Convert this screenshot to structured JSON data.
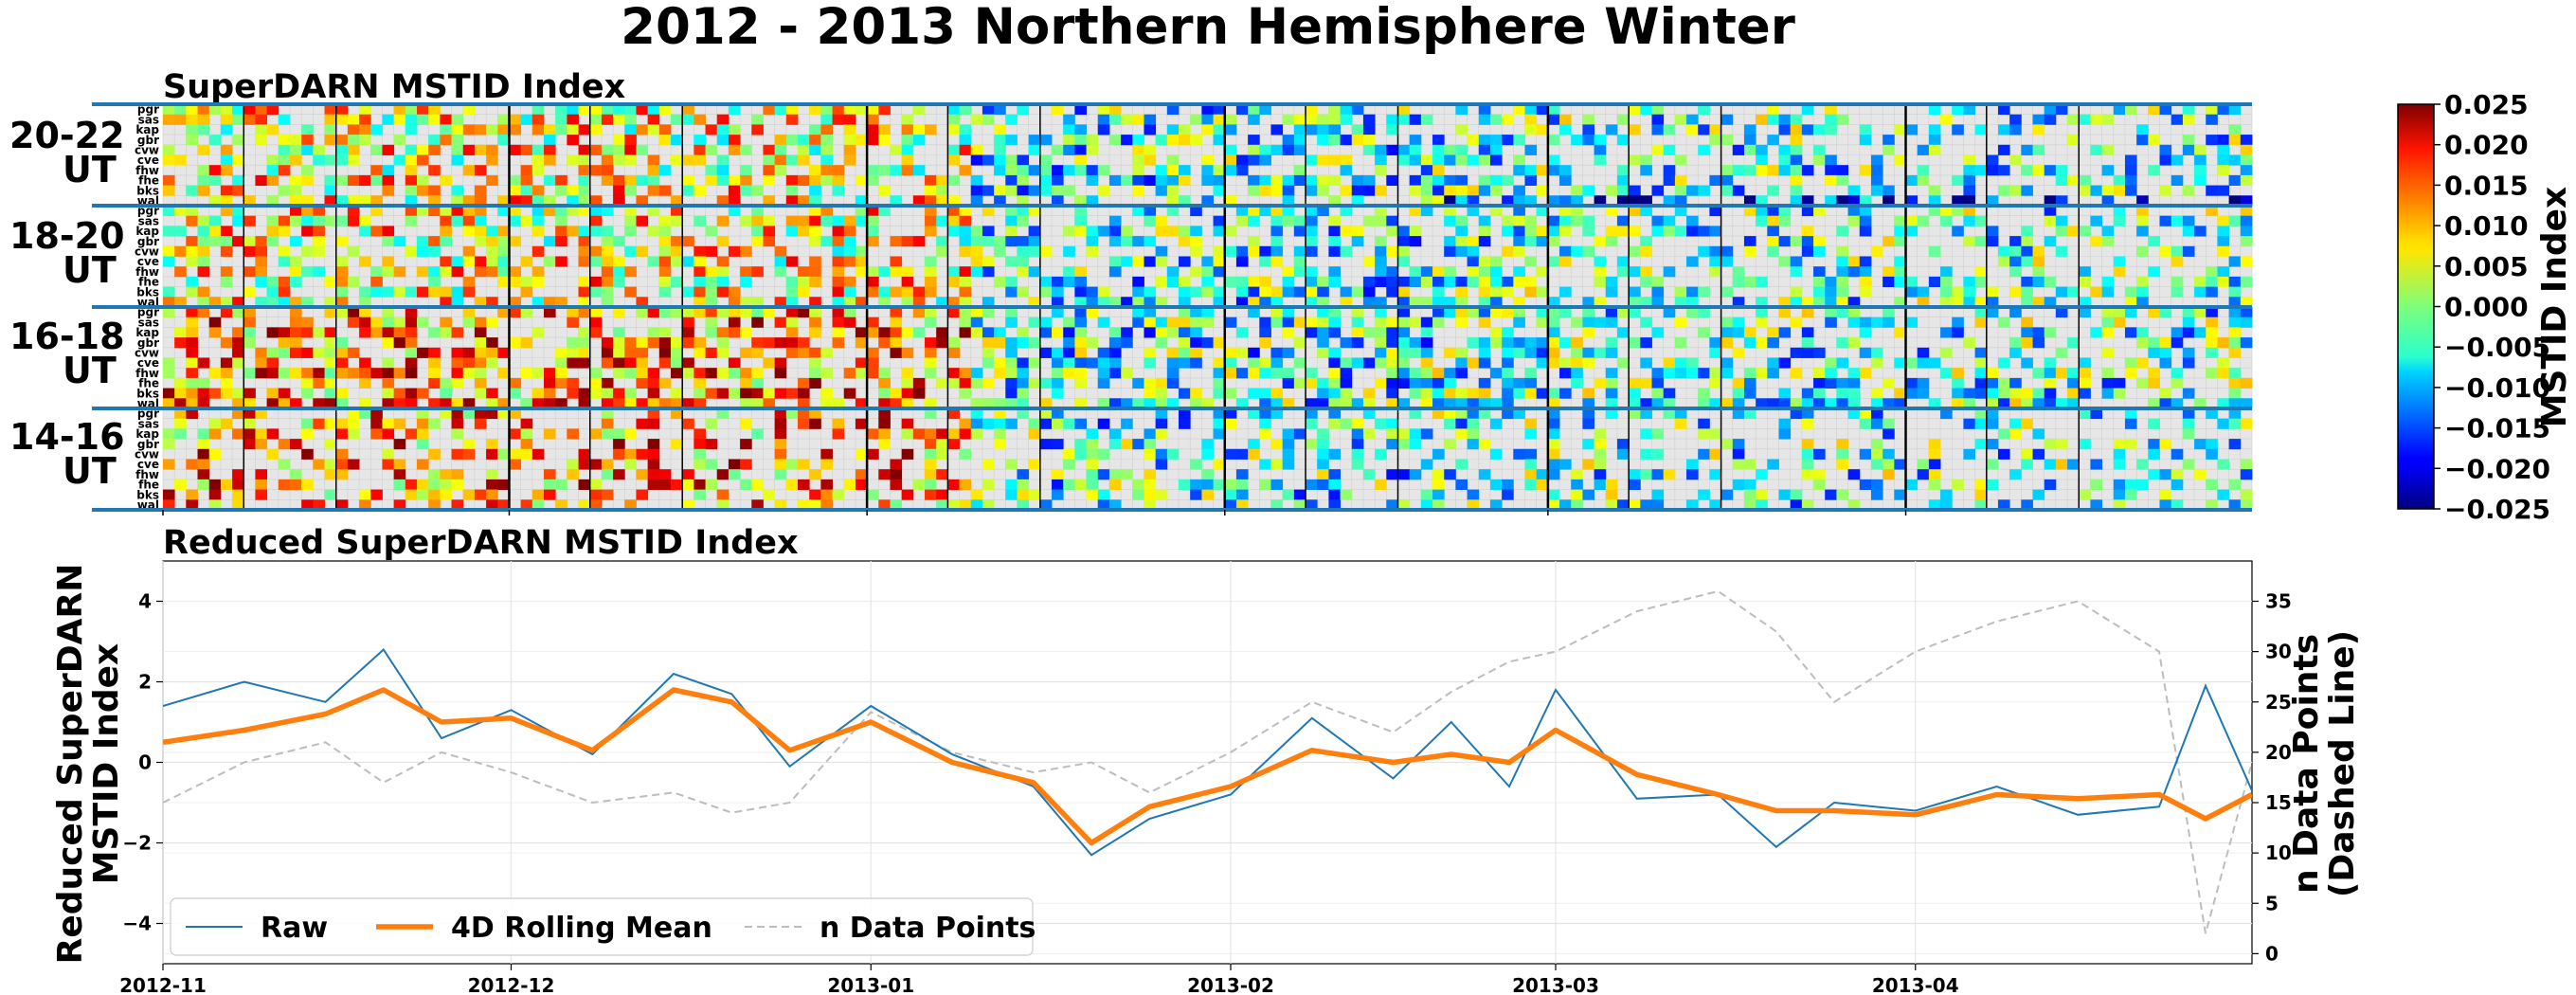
{
  "figure": {
    "title": "2012 - 2013 Northern Hemisphere Winter"
  },
  "heatmap": {
    "title": "SuperDARN MSTID Index",
    "radars": [
      "pgr",
      "sas",
      "kap",
      "gbr",
      "cvw",
      "cve",
      "fhw",
      "fhe",
      "bks",
      "wal"
    ],
    "rows": [
      {
        "label_top": "20-22",
        "label_bottom": "UT"
      },
      {
        "label_top": "18-20",
        "label_bottom": "UT"
      },
      {
        "label_top": "16-18",
        "label_bottom": "UT"
      },
      {
        "label_top": "14-16",
        "label_bottom": "UT"
      }
    ],
    "days": 181,
    "start_date": "2012-11-01",
    "colorbar": {
      "label": "MSTID Index",
      "ticks": [
        "0.025",
        "0.020",
        "0.015",
        "0.010",
        "0.005",
        "0.000",
        "−0.005",
        "−0.010",
        "−0.015",
        "−0.020",
        "−0.025"
      ],
      "range": [
        -0.025,
        0.025
      ],
      "colormap": "jet"
    },
    "missing_color": "#e6e6e6"
  },
  "lineplot": {
    "title": "Reduced SuperDARN MSTID Index",
    "ylabel_line1": "Reduced SuperDARN",
    "ylabel_line2": "MSTID Index",
    "y2label_line1": "n Data Points",
    "y2label_line2": "(Dashed Line)",
    "yticks": [
      "4",
      "2",
      "0",
      "−2",
      "−4"
    ],
    "y2ticks": [
      "35",
      "30",
      "25",
      "20",
      "15",
      "10",
      "5",
      "0"
    ],
    "xticks": [
      "2012-11",
      "2012-12",
      "2013-01",
      "2013-02",
      "2013-03",
      "2013-04"
    ],
    "legend": {
      "raw": "Raw",
      "rolling": "4D Rolling Mean",
      "ndata": "n Data Points"
    }
  },
  "chart_data": [
    {
      "type": "heatmap",
      "title": "SuperDARN MSTID Index",
      "x_range": [
        "2012-11-01",
        "2013-04-30"
      ],
      "y_groups": [
        "20-22 UT",
        "18-20 UT",
        "16-18 UT",
        "14-16 UT"
      ],
      "y_categories": [
        "pgr",
        "sas",
        "kap",
        "gbr",
        "cvw",
        "cve",
        "fhw",
        "fhe",
        "bks",
        "wal"
      ],
      "value_range": [
        -0.025,
        0.025
      ],
      "colorbar_label": "MSTID Index"
    },
    {
      "type": "line",
      "title": "Reduced SuperDARN MSTID Index",
      "x_range": [
        "2012-11-01",
        "2013-04-30"
      ],
      "ylim": [
        -5,
        5
      ],
      "y2lim": [
        -1,
        39
      ],
      "colors": {
        "raw": "#1f77b4",
        "rolling": "#ff7f0e",
        "ndata": "#bbbbbb"
      },
      "series": [
        {
          "name": "4D Rolling Mean",
          "x": [
            "2012-11-01",
            "2012-11-08",
            "2012-11-15",
            "2012-11-20",
            "2012-11-25",
            "2012-12-01",
            "2012-12-08",
            "2012-12-15",
            "2012-12-20",
            "2012-12-25",
            "2013-01-01",
            "2013-01-08",
            "2013-01-15",
            "2013-01-20",
            "2013-01-25",
            "2013-02-01",
            "2013-02-08",
            "2013-02-15",
            "2013-02-20",
            "2013-02-25",
            "2013-03-01",
            "2013-03-08",
            "2013-03-15",
            "2013-03-20",
            "2013-03-25",
            "2013-04-01",
            "2013-04-08",
            "2013-04-15",
            "2013-04-22",
            "2013-04-26",
            "2013-04-30"
          ],
          "y": [
            0.5,
            0.8,
            1.2,
            1.8,
            1.0,
            1.1,
            0.3,
            1.8,
            1.5,
            0.3,
            1.0,
            0.0,
            -0.5,
            -2.0,
            -1.1,
            -0.6,
            0.3,
            0.0,
            0.2,
            0.0,
            0.8,
            -0.3,
            -0.8,
            -1.2,
            -1.2,
            -1.3,
            -0.8,
            -0.9,
            -0.8,
            -1.4,
            -0.8
          ]
        },
        {
          "name": "Raw",
          "x": [
            "2012-11-01",
            "2012-11-08",
            "2012-11-15",
            "2012-11-20",
            "2012-11-25",
            "2012-12-01",
            "2012-12-08",
            "2012-12-15",
            "2012-12-20",
            "2012-12-25",
            "2013-01-01",
            "2013-01-08",
            "2013-01-15",
            "2013-01-20",
            "2013-01-25",
            "2013-02-01",
            "2013-02-08",
            "2013-02-15",
            "2013-02-20",
            "2013-02-25",
            "2013-03-01",
            "2013-03-08",
            "2013-03-15",
            "2013-03-20",
            "2013-03-25",
            "2013-04-01",
            "2013-04-08",
            "2013-04-15",
            "2013-04-22",
            "2013-04-26",
            "2013-04-30"
          ],
          "y": [
            1.4,
            2.0,
            1.5,
            2.8,
            0.6,
            1.3,
            0.2,
            2.2,
            1.7,
            -0.1,
            1.4,
            0.2,
            -0.6,
            -2.3,
            -1.4,
            -0.8,
            1.1,
            -0.4,
            1.0,
            -0.6,
            1.8,
            -0.9,
            -0.8,
            -2.1,
            -1.0,
            -1.2,
            -0.6,
            -1.3,
            -1.1,
            1.9,
            -0.7
          ]
        },
        {
          "name": "n Data Points",
          "axis": "right",
          "x": [
            "2012-11-01",
            "2012-11-08",
            "2012-11-15",
            "2012-11-20",
            "2012-11-25",
            "2012-12-01",
            "2012-12-08",
            "2012-12-15",
            "2012-12-20",
            "2012-12-25",
            "2013-01-01",
            "2013-01-08",
            "2013-01-15",
            "2013-01-20",
            "2013-01-25",
            "2013-02-01",
            "2013-02-08",
            "2013-02-15",
            "2013-02-20",
            "2013-02-25",
            "2013-03-01",
            "2013-03-08",
            "2013-03-15",
            "2013-03-20",
            "2013-03-25",
            "2013-04-01",
            "2013-04-08",
            "2013-04-15",
            "2013-04-22",
            "2013-04-26",
            "2013-04-30"
          ],
          "y": [
            15,
            19,
            21,
            17,
            20,
            18,
            15,
            16,
            14,
            15,
            24,
            20,
            18,
            19,
            16,
            20,
            25,
            22,
            26,
            29,
            30,
            34,
            36,
            32,
            25,
            30,
            33,
            35,
            30,
            2,
            19
          ]
        }
      ]
    }
  ]
}
